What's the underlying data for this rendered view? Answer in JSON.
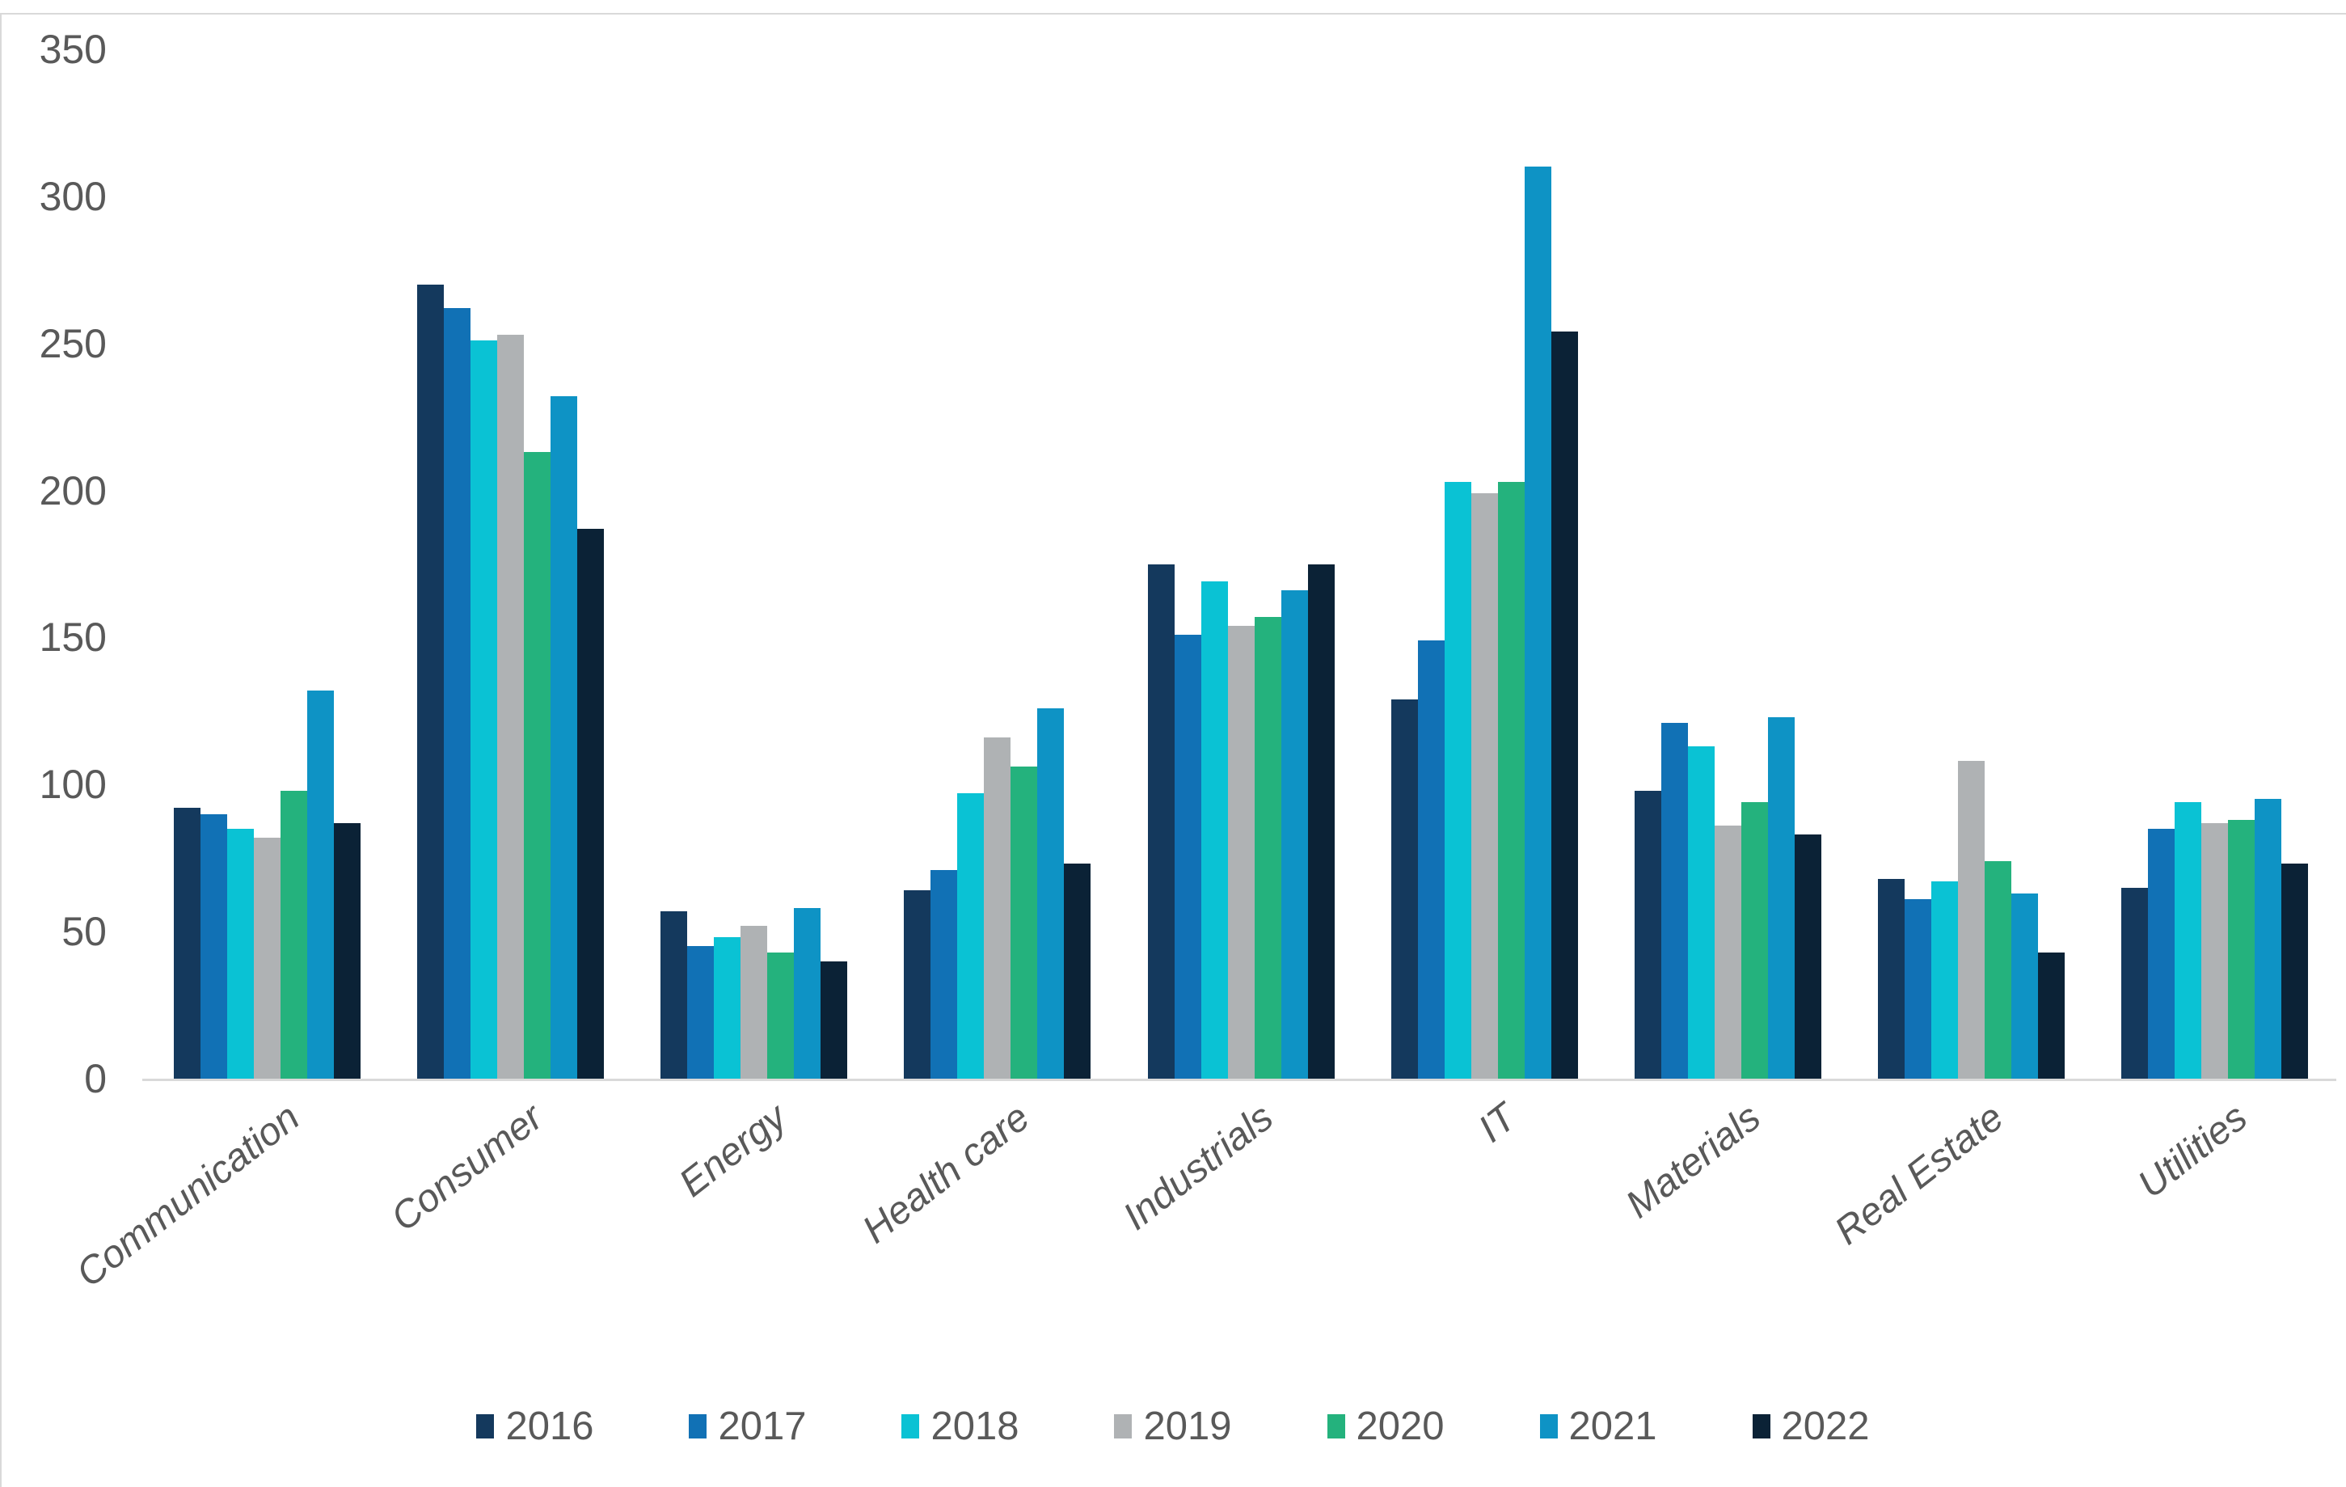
{
  "chart_data": {
    "type": "bar",
    "title": "",
    "xlabel": "",
    "ylabel": "",
    "ylim": [
      0,
      350
    ],
    "yticks": [
      0,
      50,
      100,
      150,
      200,
      250,
      300,
      350
    ],
    "grid": false,
    "legend_position": "bottom",
    "axis_text_color": "#595959",
    "axis_line_color": "#d9d9d9",
    "categories": [
      "Communication",
      "Consumer",
      "Energy",
      "Health care",
      "Industrials",
      "IT",
      "Materials",
      "Real Estate",
      "Utilities"
    ],
    "series": [
      {
        "name": "2016",
        "color": "#14395d",
        "values": [
          92,
          270,
          57,
          64,
          175,
          129,
          98,
          68,
          65
        ]
      },
      {
        "name": "2017",
        "color": "#1171b5",
        "values": [
          90,
          262,
          45,
          71,
          151,
          149,
          121,
          61,
          85
        ]
      },
      {
        "name": "2018",
        "color": "#0ac2d4",
        "values": [
          85,
          251,
          48,
          97,
          169,
          203,
          113,
          67,
          94
        ]
      },
      {
        "name": "2019",
        "color": "#afb2b4",
        "values": [
          82,
          253,
          52,
          116,
          154,
          199,
          86,
          108,
          87
        ]
      },
      {
        "name": "2020",
        "color": "#24b27d",
        "values": [
          98,
          213,
          43,
          106,
          157,
          203,
          94,
          74,
          88
        ]
      },
      {
        "name": "2021",
        "color": "#0e93c5",
        "values": [
          132,
          232,
          58,
          126,
          166,
          310,
          123,
          63,
          95
        ]
      },
      {
        "name": "2022",
        "color": "#0b2236",
        "values": [
          87,
          187,
          40,
          73,
          175,
          254,
          83,
          43,
          73
        ]
      }
    ]
  }
}
